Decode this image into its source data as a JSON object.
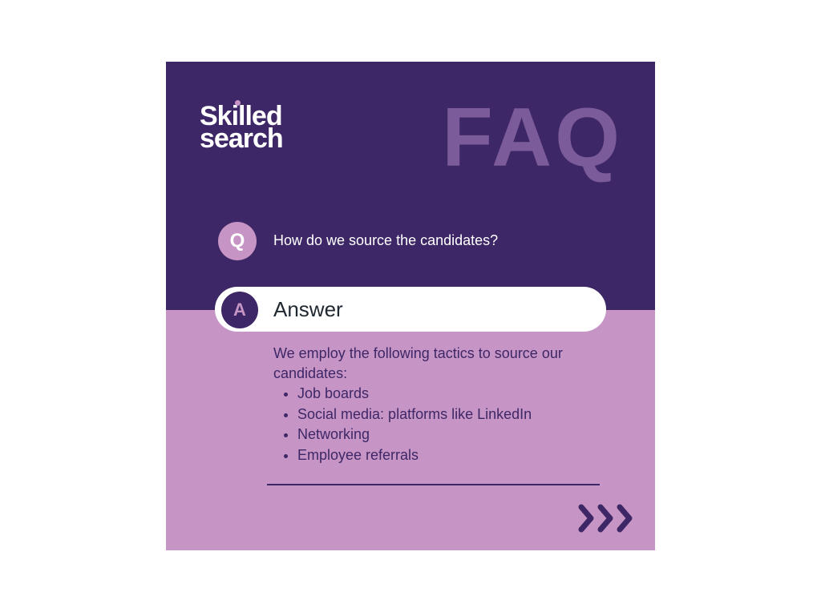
{
  "colors": {
    "primary": "#3e2766",
    "light": "#c695c6",
    "faq_text": "#7c5b9a",
    "white": "#ffffff"
  },
  "logo": {
    "line1": "Skilled",
    "line2": "search"
  },
  "header": {
    "title": "FAQ"
  },
  "question": {
    "badge": "Q",
    "text": "How do we source the candidates?"
  },
  "answer": {
    "badge": "A",
    "label": "Answer",
    "intro": "We employ the following tactics to source our candidates:",
    "items": [
      "Job boards",
      "Social media: platforms like LinkedIn",
      "Networking",
      "Employee referrals"
    ]
  },
  "icons": {
    "next": "triple-chevron-right-icon"
  }
}
